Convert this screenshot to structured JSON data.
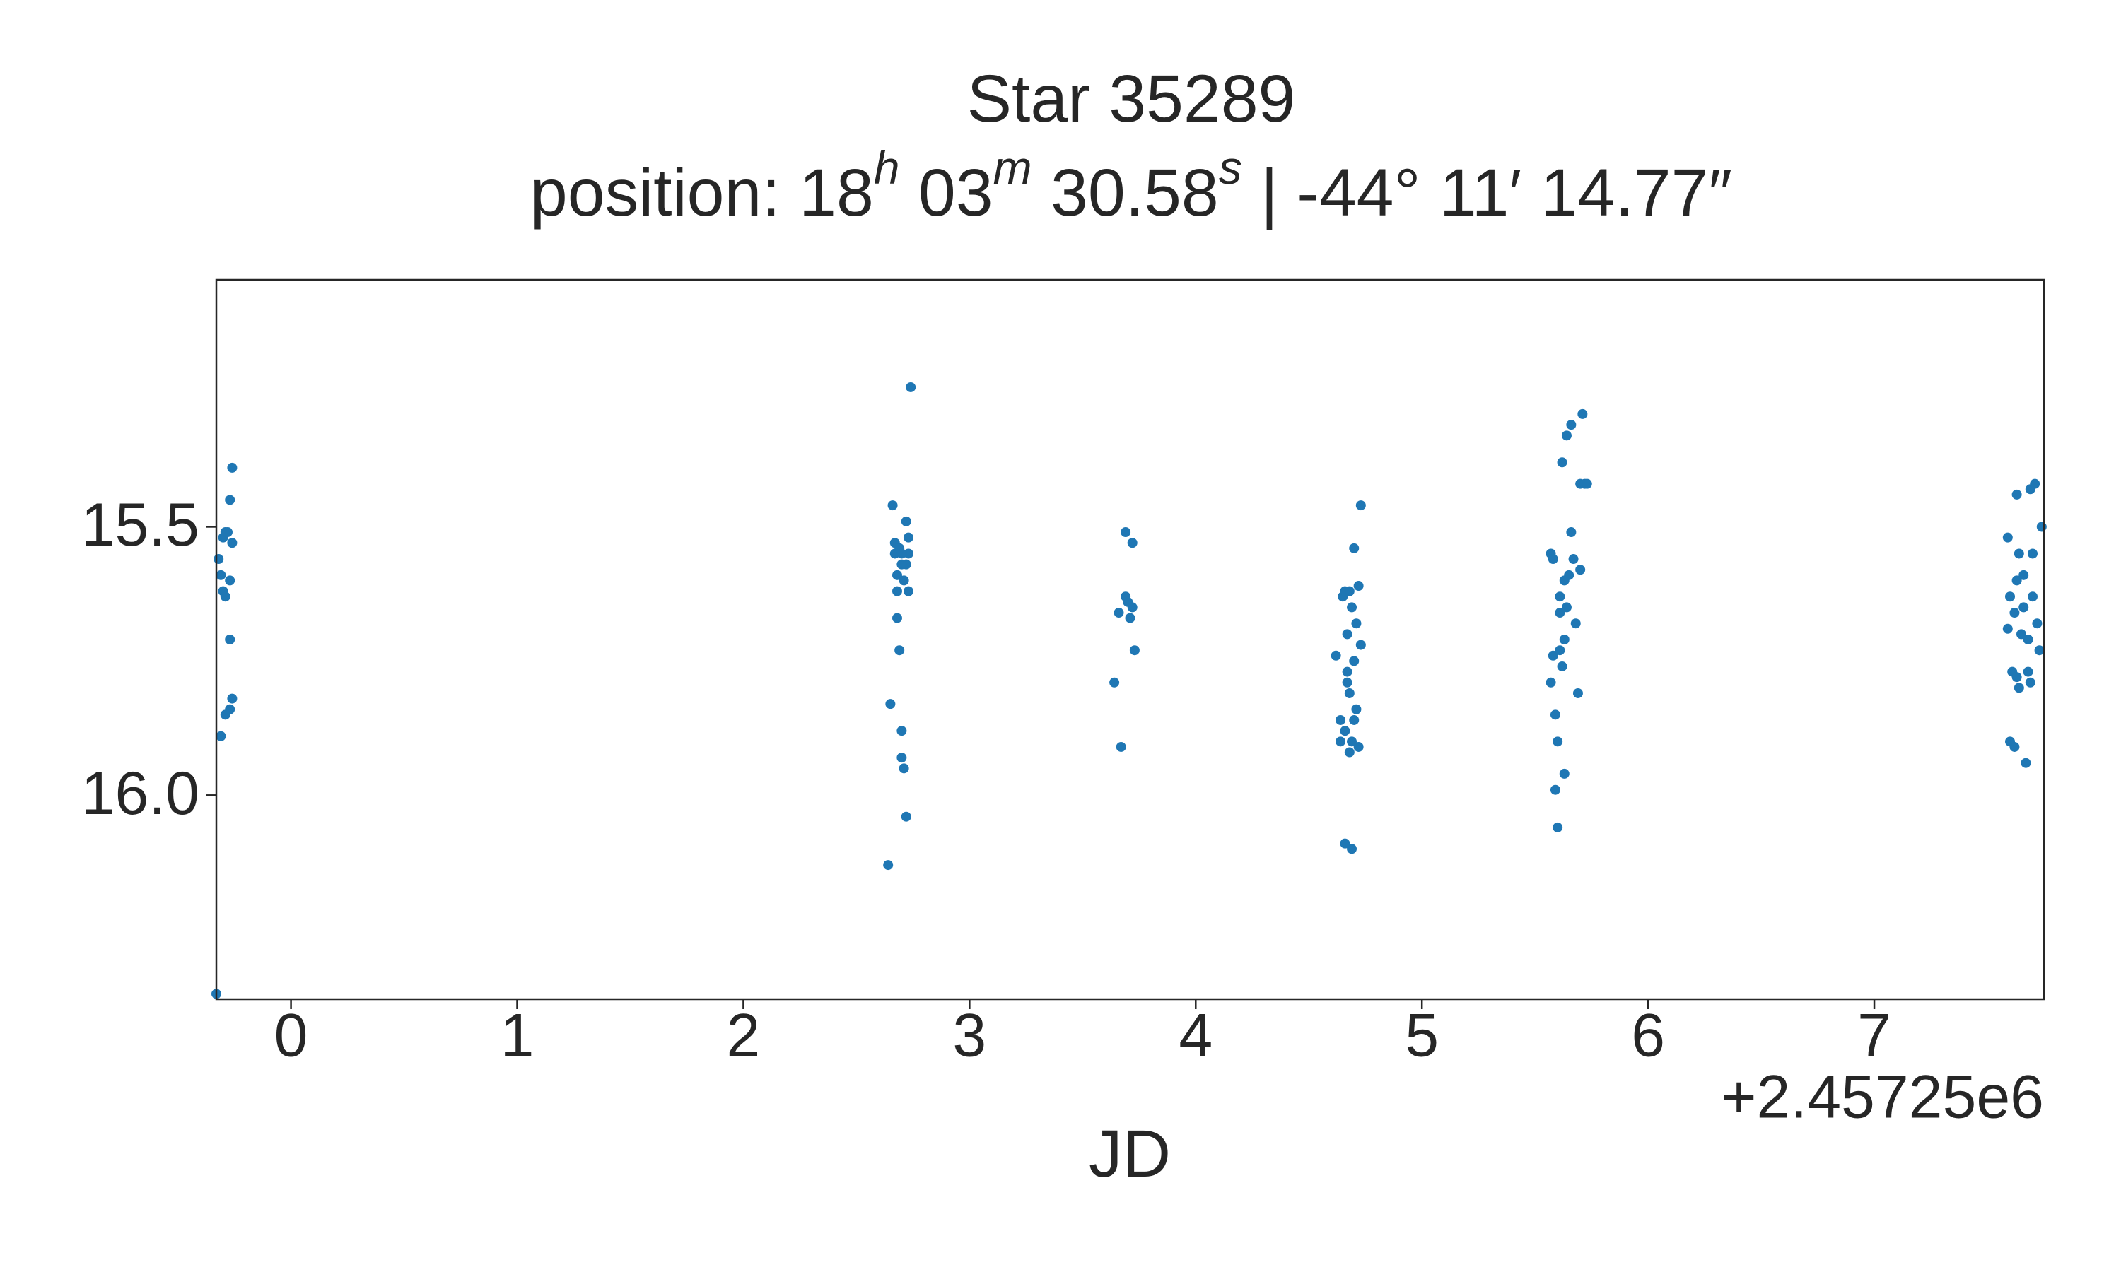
{
  "chart_data": {
    "type": "scatter",
    "title": "Star 35289",
    "subtitle_parts": [
      "position: 18",
      "h",
      " 03",
      "m",
      " 30.58",
      "s",
      " | -44° 11′ 14.77″"
    ],
    "xlabel": "JD",
    "x_offset_label": "+2.45725e6",
    "color": "#1f77b4",
    "xlim": [
      -0.33,
      7.75
    ],
    "ylim": [
      16.38,
      15.04
    ],
    "xticks": [
      0,
      1,
      2,
      3,
      4,
      5,
      6,
      7
    ],
    "yticks": [
      15.5,
      {
        "value": 16.0,
        "label": "16.0"
      }
    ],
    "x": [
      -0.33,
      -0.32,
      -0.3,
      -0.31,
      -0.3,
      -0.29,
      -0.31,
      -0.29,
      -0.27,
      -0.26,
      -0.26,
      -0.27,
      -0.27,
      -0.27,
      -0.26,
      -0.29,
      -0.28,
      2.64,
      2.65,
      2.66,
      2.67,
      2.67,
      2.68,
      2.68,
      2.68,
      2.69,
      2.7,
      2.7,
      2.71,
      2.72,
      2.72,
      2.73,
      2.73,
      2.72,
      2.73,
      2.7,
      2.69,
      2.74,
      2.7,
      2.71,
      3.64,
      3.66,
      3.67,
      3.69,
      3.7,
      3.71,
      3.72,
      3.72,
      3.73,
      3.69,
      4.62,
      4.64,
      4.64,
      4.65,
      4.66,
      4.66,
      4.67,
      4.67,
      4.68,
      4.68,
      4.69,
      4.69,
      4.7,
      4.7,
      4.71,
      4.71,
      4.72,
      4.72,
      4.73,
      4.73,
      4.66,
      4.67,
      4.69,
      4.7,
      4.68,
      5.57,
      5.57,
      5.58,
      5.59,
      5.6,
      5.59,
      5.6,
      5.61,
      5.61,
      5.62,
      5.62,
      5.63,
      5.63,
      5.64,
      5.64,
      5.65,
      5.66,
      5.66,
      5.67,
      5.68,
      5.69,
      5.7,
      5.71,
      5.72,
      5.73,
      5.7,
      5.61,
      5.58,
      5.63,
      7.59,
      7.59,
      7.6,
      7.61,
      7.62,
      7.62,
      7.63,
      7.63,
      7.64,
      7.64,
      7.65,
      7.66,
      7.66,
      7.67,
      7.68,
      7.68,
      7.69,
      7.7,
      7.7,
      7.71,
      7.72,
      7.73,
      7.74,
      7.6,
      7.63,
      7.69
    ],
    "y": [
      16.37,
      15.56,
      15.52,
      15.59,
      15.62,
      15.63,
      15.89,
      15.85,
      15.84,
      15.82,
      15.39,
      15.45,
      15.71,
      15.6,
      15.53,
      15.51,
      15.51,
      16.13,
      15.83,
      15.46,
      15.53,
      15.55,
      15.59,
      15.62,
      15.67,
      15.73,
      15.88,
      15.93,
      15.95,
      16.04,
      15.49,
      15.52,
      15.55,
      15.57,
      15.62,
      15.55,
      15.54,
      15.24,
      15.57,
      15.6,
      15.79,
      15.66,
      15.91,
      15.51,
      15.64,
      15.67,
      15.53,
      15.65,
      15.73,
      15.63,
      15.74,
      15.9,
      15.86,
      15.63,
      15.88,
      16.09,
      15.7,
      15.77,
      15.81,
      15.62,
      15.9,
      16.1,
      15.75,
      15.54,
      15.68,
      15.84,
      15.91,
      15.61,
      15.46,
      15.72,
      15.62,
      15.79,
      15.65,
      15.86,
      15.92,
      15.55,
      15.79,
      15.74,
      15.85,
      15.9,
      15.99,
      16.06,
      15.66,
      15.63,
      15.76,
      15.38,
      15.96,
      15.71,
      15.65,
      15.33,
      15.59,
      15.31,
      15.51,
      15.56,
      15.68,
      15.81,
      15.42,
      15.29,
      15.42,
      15.42,
      15.58,
      15.73,
      15.56,
      15.6,
      15.52,
      15.69,
      15.63,
      15.77,
      15.66,
      15.91,
      15.44,
      15.6,
      15.8,
      15.55,
      15.7,
      15.59,
      15.65,
      15.94,
      15.71,
      15.77,
      15.43,
      15.55,
      15.63,
      15.42,
      15.68,
      15.73,
      15.5,
      15.9,
      15.78,
      15.79
    ]
  }
}
